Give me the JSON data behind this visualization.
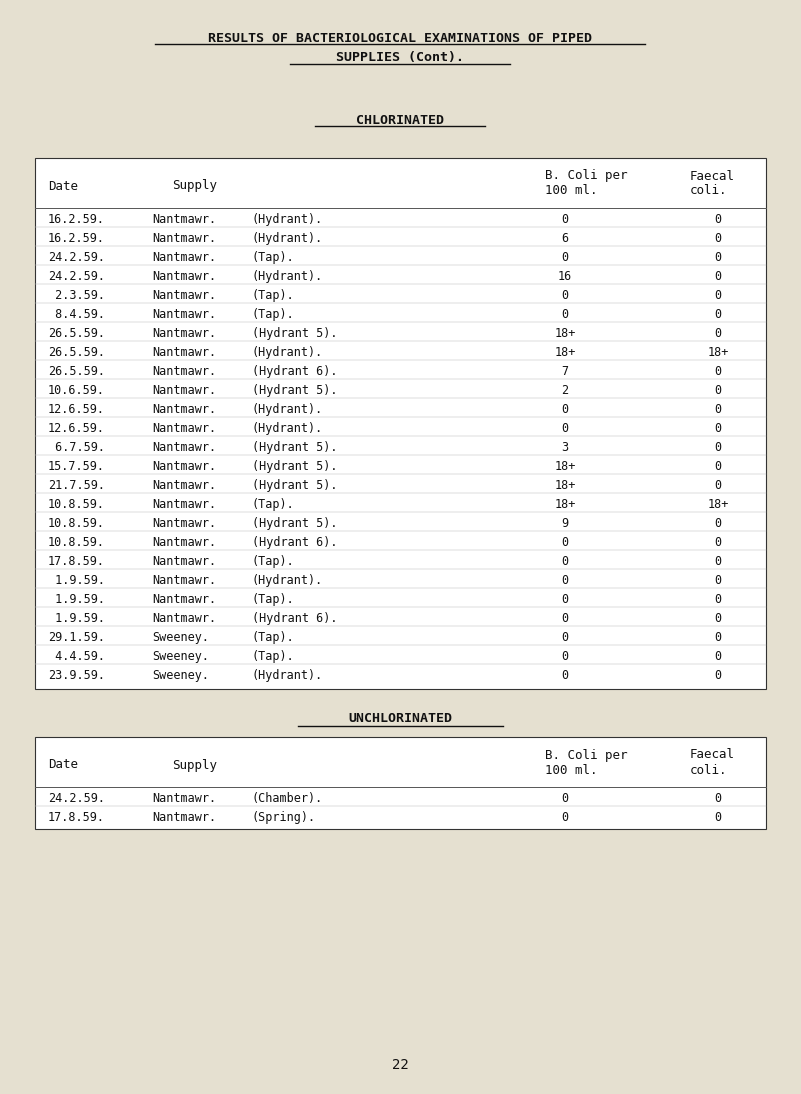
{
  "background_color": "#e5e0d0",
  "page_number": "22",
  "title_line1": "RESULTS OF BACTERIOLOGICAL EXAMINATIONS OF PIPED",
  "title_line2": "SUPPLIES (Cont).",
  "section1_title": "CHLORINATED",
  "section2_title": "UNCHLORINATED",
  "chlorinated_rows": [
    [
      "16.2.59.",
      "Nantmawr.",
      "(Hydrant).",
      "0",
      "0"
    ],
    [
      "16.2.59.",
      "Nantmawr.",
      "(Hydrant).",
      "6",
      "0"
    ],
    [
      "24.2.59.",
      "Nantmawr.",
      "(Tap).",
      "0",
      "0"
    ],
    [
      "24.2.59.",
      "Nantmawr.",
      "(Hydrant).",
      "16",
      "0"
    ],
    [
      " 2.3.59.",
      "Nantmawr.",
      "(Tap).",
      "0",
      "0"
    ],
    [
      " 8.4.59.",
      "Nantmawr.",
      "(Tap).",
      "0",
      "0"
    ],
    [
      "26.5.59.",
      "Nantmawr.",
      "(Hydrant 5).",
      "18+",
      "0"
    ],
    [
      "26.5.59.",
      "Nantmawr.",
      "(Hydrant).",
      "18+",
      "18+"
    ],
    [
      "26.5.59.",
      "Nantmawr.",
      "(Hydrant 6).",
      "7",
      "0"
    ],
    [
      "10.6.59.",
      "Nantmawr.",
      "(Hydrant 5).",
      "2",
      "0"
    ],
    [
      "12.6.59.",
      "Nantmawr.",
      "(Hydrant).",
      "0",
      "0"
    ],
    [
      "12.6.59.",
      "Nantmawr.",
      "(Hydrant).",
      "0",
      "0"
    ],
    [
      " 6.7.59.",
      "Nantmawr.",
      "(Hydrant 5).",
      "3",
      "0"
    ],
    [
      "15.7.59.",
      "Nantmawr.",
      "(Hydrant 5).",
      "18+",
      "0"
    ],
    [
      "21.7.59.",
      "Nantmawr.",
      "(Hydrant 5).",
      "18+",
      "0"
    ],
    [
      "10.8.59.",
      "Nantmawr.",
      "(Tap).",
      "18+",
      "18+"
    ],
    [
      "10.8.59.",
      "Nantmawr.",
      "(Hydrant 5).",
      "9",
      "0"
    ],
    [
      "10.8.59.",
      "Nantmawr.",
      "(Hydrant 6).",
      "0",
      "0"
    ],
    [
      "17.8.59.",
      "Nantmawr.",
      "(Tap).",
      "0",
      "0"
    ],
    [
      " 1.9.59.",
      "Nantmawr.",
      "(Hydrant).",
      "0",
      "0"
    ],
    [
      " 1.9.59.",
      "Nantmawr.",
      "(Tap).",
      "0",
      "0"
    ],
    [
      " 1.9.59.",
      "Nantmawr.",
      "(Hydrant 6).",
      "0",
      "0"
    ],
    [
      "29.1.59.",
      "Sweeney.",
      "(Tap).",
      "0",
      "0"
    ],
    [
      " 4.4.59.",
      "Sweeney.",
      "(Tap).",
      "0",
      "0"
    ],
    [
      "23.9.59.",
      "Sweeney.",
      "(Hydrant).",
      "0",
      "0"
    ]
  ],
  "unchlorinated_rows": [
    [
      "24.2.59.",
      "Nantmawr.",
      "(Chamber).",
      "0",
      "0"
    ],
    [
      "17.8.59.",
      "Nantmawr.",
      "(Spring).",
      "0",
      "0"
    ]
  ]
}
